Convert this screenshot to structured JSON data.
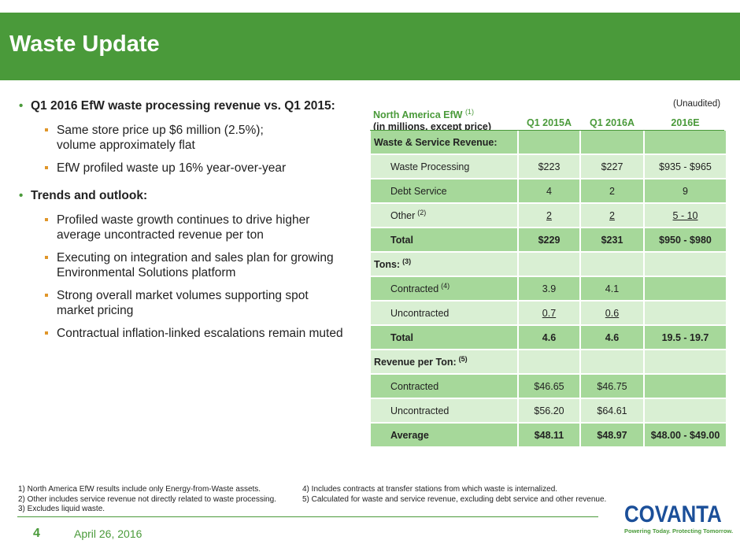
{
  "title": "Waste Update",
  "bullets": [
    {
      "text": "Q1 2016 EfW waste processing revenue vs. Q1 2015:",
      "sub": [
        "Same store price up $6 million (2.5%);",
        "volume approximately flat",
        "EfW profiled waste up 16% year-over-year"
      ]
    },
    {
      "text": "Trends and outlook:",
      "sub": [
        "Profiled waste growth continues to drive higher",
        "average uncontracted revenue per ton",
        "Executing on integration and sales plan for growing",
        "Environmental Solutions platform",
        "Strong overall market volumes supporting spot",
        "market pricing",
        "Contractual inflation-linked escalations remain muted"
      ]
    }
  ],
  "table": {
    "unaudited": "(Unaudited)",
    "header_line1": "North America EfW",
    "header_line1_sup": "(1)",
    "header_line2": "(in millions, except price)",
    "columns": [
      "Q1 2015A",
      "Q1 2016A",
      "2016E"
    ],
    "rows": [
      {
        "label": "Waste & Service Revenue:",
        "sup": "",
        "values": [
          "",
          "",
          ""
        ]
      },
      {
        "label": "Waste Processing",
        "sup": "",
        "values": [
          "$223",
          "$227",
          "$935 - $965"
        ]
      },
      {
        "label": "Debt Service",
        "sup": "",
        "values": [
          "4",
          "2",
          "9"
        ]
      },
      {
        "label": "Other",
        "sup": "(2)",
        "values": [
          "2",
          "2",
          "5 - 10"
        ]
      },
      {
        "label": "Total",
        "sup": "",
        "values": [
          "$229",
          "$231",
          "$950 - $980"
        ]
      },
      {
        "label": "Tons:",
        "sup": "(3)",
        "values": [
          "",
          "",
          ""
        ]
      },
      {
        "label": "Contracted",
        "sup": "(4)",
        "values": [
          "3.9",
          "4.1",
          ""
        ]
      },
      {
        "label": "Uncontracted",
        "sup": "",
        "values": [
          "0.7",
          "0.6",
          ""
        ]
      },
      {
        "label": "Total",
        "sup": "",
        "values": [
          "4.6",
          "4.6",
          "19.5 - 19.7"
        ]
      },
      {
        "label": "Revenue per Ton:",
        "sup": "(5)",
        "values": [
          "",
          "",
          ""
        ]
      },
      {
        "label": "Contracted",
        "sup": "",
        "values": [
          "$46.65",
          "$46.75",
          ""
        ]
      },
      {
        "label": "Uncontracted",
        "sup": "",
        "values": [
          "$56.20",
          "$64.61",
          ""
        ]
      },
      {
        "label": "Average",
        "sup": "",
        "values": [
          "$48.11",
          "$48.97",
          "$48.00 - $49.00"
        ]
      }
    ]
  },
  "footnotes_left": [
    "1) North America EfW results include only Energy-from-Waste assets.",
    "2) Other includes service revenue not directly related to waste processing.",
    "3) Excludes liquid waste."
  ],
  "footnotes_right": [
    "4) Includes contracts at transfer stations from which waste is internalized.",
    "5) Calculated for waste and service revenue, excluding debt service and other revenue."
  ],
  "page_number": "4",
  "date": "April 26, 2016",
  "logo": {
    "word": "COVANTA",
    "tagline": "Powering Today. Protecting Tomorrow."
  },
  "colors": {
    "brand_green": "#4a9a3a",
    "row_dark": "#a6d89a",
    "row_light": "#d9efd3",
    "logo_blue": "#1b4f99",
    "bullet_orange": "#e0962a"
  }
}
